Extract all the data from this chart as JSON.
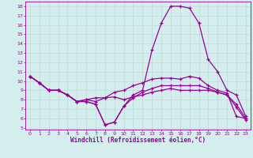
{
  "xlabel": "Windchill (Refroidissement éolien,°C)",
  "bg_color": "#d4eeee",
  "line_color": "#990099",
  "grid_color": "#c0dada",
  "xlim": [
    -0.5,
    23.5
  ],
  "ylim": [
    4.8,
    18.5
  ],
  "xticks": [
    0,
    1,
    2,
    3,
    4,
    5,
    6,
    7,
    8,
    9,
    10,
    11,
    12,
    13,
    14,
    15,
    16,
    17,
    18,
    19,
    20,
    21,
    22,
    23
  ],
  "yticks": [
    5,
    6,
    7,
    8,
    9,
    10,
    11,
    12,
    13,
    14,
    15,
    16,
    17,
    18
  ],
  "line1_x": [
    0,
    1,
    2,
    3,
    4,
    5,
    6,
    7,
    8,
    9,
    10,
    11,
    12,
    13,
    14,
    15,
    16,
    17,
    18,
    19,
    20,
    21,
    22,
    23
  ],
  "line1_y": [
    10.5,
    9.8,
    9.0,
    9.0,
    8.5,
    7.8,
    7.8,
    7.5,
    5.3,
    5.6,
    7.3,
    8.5,
    9.0,
    13.3,
    16.2,
    18.0,
    18.0,
    17.8,
    16.2,
    12.3,
    11.0,
    9.0,
    8.5,
    6.2
  ],
  "line2_x": [
    0,
    1,
    2,
    3,
    4,
    5,
    6,
    7,
    8,
    9,
    10,
    11,
    12,
    13,
    14,
    15,
    16,
    17,
    18,
    19,
    20,
    21,
    22,
    23
  ],
  "line2_y": [
    10.5,
    9.8,
    9.0,
    9.0,
    8.5,
    7.8,
    8.0,
    8.2,
    8.2,
    8.8,
    9.0,
    9.5,
    9.8,
    10.2,
    10.3,
    10.3,
    10.2,
    10.5,
    10.3,
    9.5,
    9.0,
    8.7,
    6.2,
    6.0
  ],
  "line3_x": [
    0,
    1,
    2,
    3,
    4,
    5,
    6,
    7,
    8,
    9,
    10,
    11,
    12,
    13,
    14,
    15,
    16,
    17,
    18,
    19,
    20,
    21,
    22,
    23
  ],
  "line3_y": [
    10.5,
    9.8,
    9.0,
    9.0,
    8.5,
    7.8,
    8.0,
    7.8,
    8.2,
    8.3,
    8.0,
    8.3,
    8.5,
    8.8,
    9.0,
    9.2,
    9.0,
    9.0,
    9.0,
    9.0,
    8.8,
    8.5,
    7.2,
    5.8
  ],
  "line4_x": [
    0,
    1,
    2,
    3,
    4,
    5,
    6,
    7,
    8,
    9,
    10,
    11,
    12,
    13,
    14,
    15,
    16,
    17,
    18,
    19,
    20,
    21,
    22,
    23
  ],
  "line4_y": [
    10.5,
    9.8,
    9.0,
    9.0,
    8.5,
    7.8,
    7.8,
    7.5,
    5.3,
    5.6,
    7.3,
    8.2,
    8.8,
    9.2,
    9.5,
    9.5,
    9.5,
    9.5,
    9.5,
    9.2,
    8.8,
    8.5,
    7.5,
    6.0
  ]
}
